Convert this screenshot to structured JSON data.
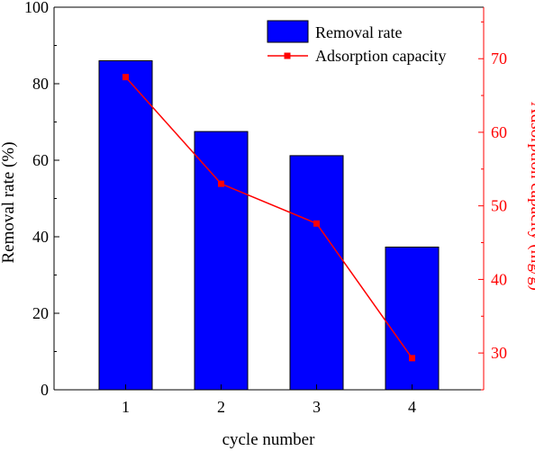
{
  "chart_data": {
    "type": "bar",
    "xlabel": "cycle number",
    "categories": [
      "1",
      "2",
      "3",
      "4"
    ],
    "series": [
      {
        "name": "Removal rate",
        "type": "bar",
        "axis": "left",
        "values": [
          86.0,
          67.5,
          61.2,
          37.3
        ],
        "color": "#0000FF"
      },
      {
        "name": "Adsorption capacity",
        "type": "line",
        "axis": "right",
        "marker": "square",
        "values": [
          67.5,
          53.0,
          47.6,
          29.3
        ],
        "color": "#FF0000"
      }
    ],
    "y_left": {
      "label": "Removal rate (%)",
      "ylim": [
        0,
        100
      ],
      "ticks": [
        "0",
        "20",
        "40",
        "60",
        "80",
        "100"
      ],
      "color": "#000000"
    },
    "y_right": {
      "label": "Adsorption capacity (mg/g)",
      "ylim": [
        25,
        77
      ],
      "ticks": [
        "30",
        "40",
        "50",
        "60",
        "70"
      ],
      "color": "#FF0000"
    },
    "legend": {
      "position": "top-right"
    },
    "grid": false
  }
}
